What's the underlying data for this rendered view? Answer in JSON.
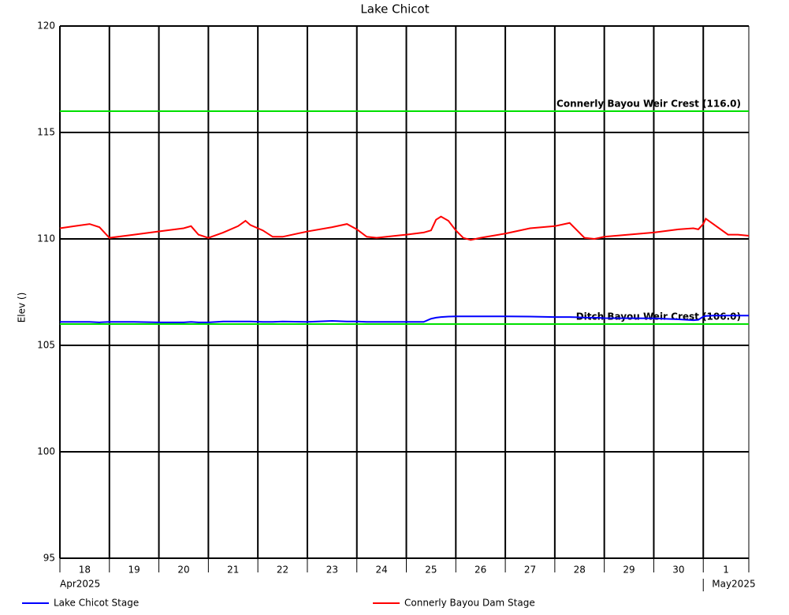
{
  "chart_data": {
    "type": "line",
    "title": "Lake Chicot",
    "ylabel": "Elev ()",
    "x": [
      0,
      0.3,
      0.6,
      0.8,
      1.0,
      1.5,
      2.0,
      2.5,
      2.65,
      2.8,
      3.0,
      3.3,
      3.6,
      3.75,
      3.85,
      4.1,
      4.3,
      4.5,
      5.0,
      5.5,
      5.8,
      6.0,
      6.2,
      6.4,
      7.0,
      7.35,
      7.5,
      7.6,
      7.7,
      7.85,
      8.0,
      8.15,
      8.3,
      8.5,
      9.0,
      9.5,
      10.0,
      10.3,
      10.45,
      10.6,
      10.8,
      11.0,
      12.0,
      12.5,
      12.8,
      12.9,
      13.0,
      13.05,
      13.2,
      13.5,
      13.7,
      13.92
    ],
    "series": [
      {
        "name": "Lake Chicot Stage",
        "color": "#0000ff",
        "values": [
          106.1,
          106.1,
          106.1,
          106.08,
          106.1,
          106.1,
          106.08,
          106.08,
          106.1,
          106.08,
          106.08,
          106.12,
          106.12,
          106.12,
          106.12,
          106.1,
          106.1,
          106.12,
          106.1,
          106.15,
          106.12,
          106.12,
          106.1,
          106.1,
          106.1,
          106.1,
          106.25,
          106.3,
          106.33,
          106.35,
          106.36,
          106.36,
          106.36,
          106.36,
          106.36,
          106.35,
          106.33,
          106.33,
          106.32,
          106.3,
          106.3,
          106.28,
          106.27,
          106.22,
          106.18,
          106.2,
          106.35,
          106.38,
          106.4,
          106.4,
          106.4,
          106.4
        ]
      },
      {
        "name": "Connerly Bayou Dam Stage",
        "color": "#ff0000",
        "values": [
          110.5,
          110.6,
          110.7,
          110.55,
          110.05,
          110.2,
          110.35,
          110.5,
          110.6,
          110.2,
          110.05,
          110.3,
          110.6,
          110.85,
          110.65,
          110.4,
          110.1,
          110.1,
          110.35,
          110.55,
          110.7,
          110.45,
          110.1,
          110.05,
          110.2,
          110.3,
          110.4,
          110.9,
          111.05,
          110.85,
          110.4,
          110.05,
          109.95,
          110.05,
          110.25,
          110.5,
          110.6,
          110.75,
          110.4,
          110.05,
          110.0,
          110.1,
          110.3,
          110.45,
          110.5,
          110.45,
          110.7,
          110.95,
          110.7,
          110.2,
          110.2,
          110.15
        ]
      }
    ],
    "hlines": [
      {
        "value": 116,
        "label": "Connerly Bayou Weir Crest (116.0)",
        "color": "#00e000"
      },
      {
        "value": 106,
        "label": "Ditch Bayou Weir Crest (106.0)",
        "color": "#00e000"
      }
    ],
    "xlim": [
      0,
      13.92
    ],
    "xticks": [
      {
        "value": 0,
        "label": "18"
      },
      {
        "value": 1,
        "label": "19"
      },
      {
        "value": 2,
        "label": "20"
      },
      {
        "value": 3,
        "label": "21"
      },
      {
        "value": 4,
        "label": "22"
      },
      {
        "value": 5,
        "label": "23"
      },
      {
        "value": 6,
        "label": "24"
      },
      {
        "value": 7,
        "label": "25"
      },
      {
        "value": 8,
        "label": "26"
      },
      {
        "value": 9,
        "label": "27"
      },
      {
        "value": 10,
        "label": "28"
      },
      {
        "value": 11,
        "label": "29"
      },
      {
        "value": 12,
        "label": "30"
      },
      {
        "value": 13,
        "label": "1"
      }
    ],
    "period_labels": [
      {
        "value": 0,
        "label": "Apr2025"
      },
      {
        "value": 13,
        "label": "May2025"
      }
    ],
    "ylim": [
      95,
      120
    ],
    "yticks": [
      95,
      100,
      105,
      110,
      115,
      120
    ],
    "grid": true
  }
}
